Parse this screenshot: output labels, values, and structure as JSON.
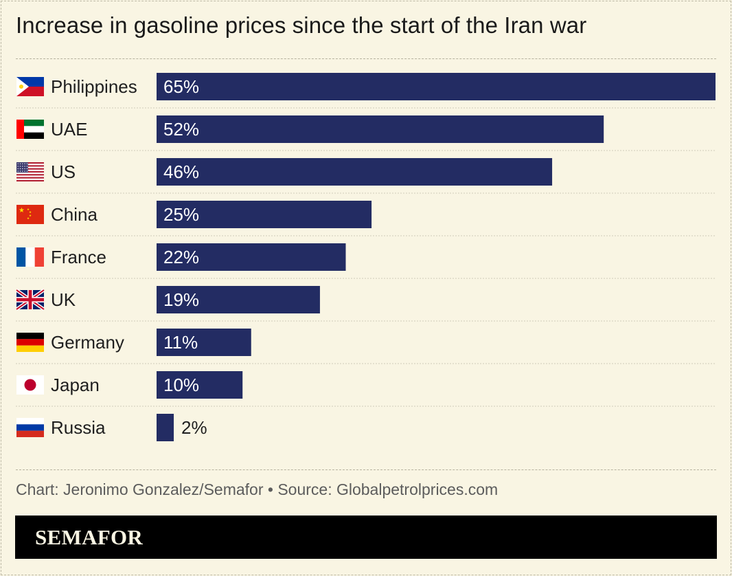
{
  "header": {
    "title": "Increase in gasoline prices since the start of the Iran war"
  },
  "chart_data": {
    "type": "bar",
    "orientation": "horizontal",
    "title": "Increase in gasoline prices since the start of the Iran war",
    "categories": [
      "Philippines",
      "UAE",
      "US",
      "China",
      "France",
      "UK",
      "Germany",
      "Japan",
      "Russia"
    ],
    "values": [
      65,
      52,
      46,
      25,
      22,
      19,
      11,
      10,
      2
    ],
    "value_labels": [
      "65%",
      "52%",
      "46%",
      "25%",
      "22%",
      "19%",
      "11%",
      "10%",
      "2%"
    ],
    "flags": [
      "philippines-flag",
      "uae-flag",
      "us-flag",
      "china-flag",
      "france-flag",
      "uk-flag",
      "germany-flag",
      "japan-flag",
      "russia-flag"
    ],
    "xlim": [
      0,
      65
    ],
    "grid": false,
    "bar_color": "#232c63"
  },
  "footer": {
    "credit": "Chart: Jeronimo Gonzalez/Semafor • Source: Globalpetrolprices.com",
    "brand": "SEMAFOR"
  }
}
